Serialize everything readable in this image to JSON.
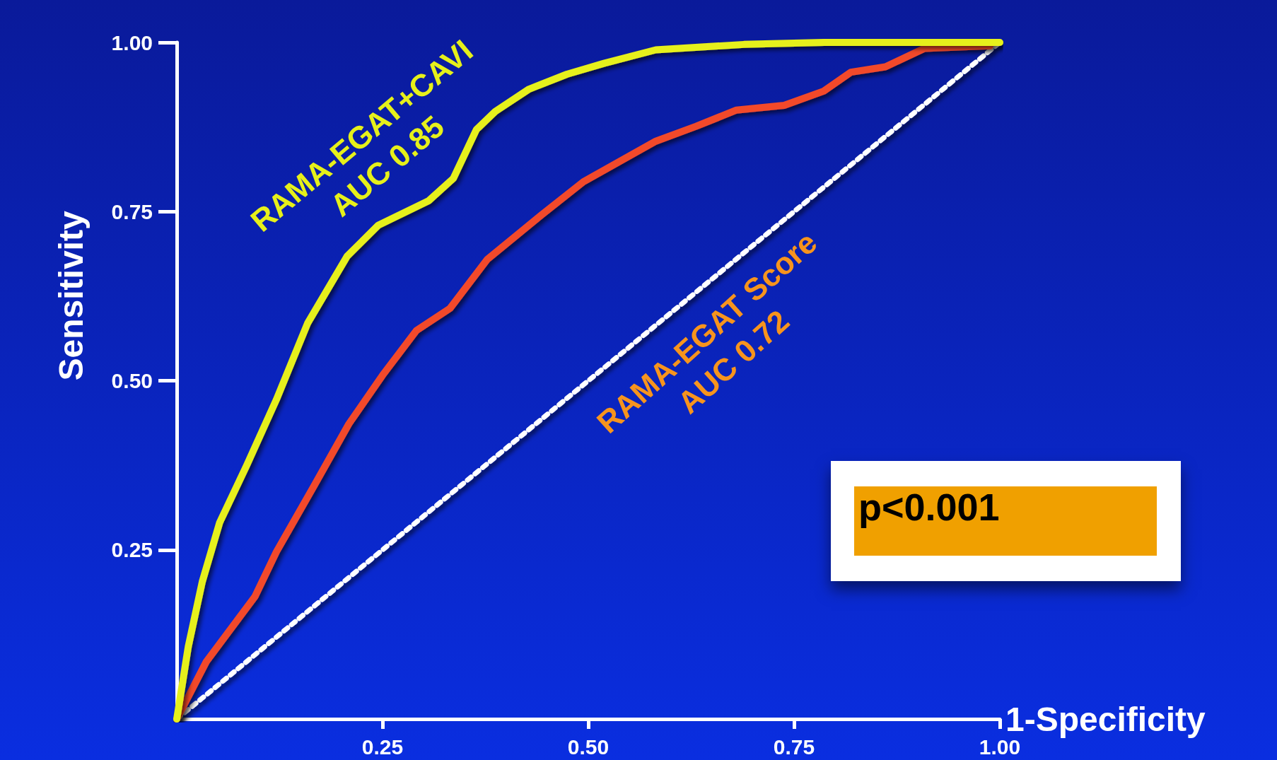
{
  "chart_data": {
    "type": "line",
    "xlabel": "1-Specificity",
    "ylabel": "Sensitivity",
    "xlim": [
      0,
      1
    ],
    "ylim": [
      0,
      1
    ],
    "xticks": [
      0.25,
      {
        "value": 0.5,
        "label": "0.50"
      },
      0.75,
      {
        "value": 1,
        "label": "1.00"
      }
    ],
    "yticks": [
      0.25,
      {
        "value": 0.5,
        "label": "0.50"
      },
      0.75,
      {
        "value": 1,
        "label": "1.00"
      }
    ],
    "grid": false,
    "series": [
      {
        "name": "RAMA-EGAT+CAVI\nAUC 0.85",
        "color": "#e6f01a",
        "x": [
          0,
          0.014,
          0.031,
          0.052,
          0.085,
          0.121,
          0.159,
          0.207,
          0.245,
          0.306,
          0.336,
          0.364,
          0.387,
          0.428,
          0.474,
          0.519,
          0.582,
          0.689,
          0.786,
          1.0
        ],
        "values": [
          0,
          0.107,
          0.203,
          0.29,
          0.375,
          0.472,
          0.585,
          0.684,
          0.73,
          0.766,
          0.799,
          0.871,
          0.898,
          0.931,
          0.953,
          0.969,
          0.989,
          0.997,
          1.0,
          1.0
        ]
      },
      {
        "name": "RAMA-EGAT Score\nAUC 0.72",
        "color": "#f24a2a",
        "x": [
          0,
          0.036,
          0.095,
          0.121,
          0.167,
          0.209,
          0.25,
          0.291,
          0.332,
          0.377,
          0.443,
          0.494,
          0.582,
          0.631,
          0.68,
          0.738,
          0.786,
          0.819,
          0.861,
          0.908,
          0.988
        ],
        "values": [
          0,
          0.085,
          0.181,
          0.247,
          0.345,
          0.436,
          0.508,
          0.574,
          0.607,
          0.679,
          0.745,
          0.794,
          0.854,
          0.876,
          0.9,
          0.907,
          0.928,
          0.956,
          0.964,
          0.991,
          0.995
        ]
      },
      {
        "color": "#ffffff",
        "line_style": "dotted",
        "x": [
          0,
          1
        ],
        "values": [
          0,
          1
        ]
      }
    ],
    "annotations": [
      "p<0.001"
    ]
  }
}
